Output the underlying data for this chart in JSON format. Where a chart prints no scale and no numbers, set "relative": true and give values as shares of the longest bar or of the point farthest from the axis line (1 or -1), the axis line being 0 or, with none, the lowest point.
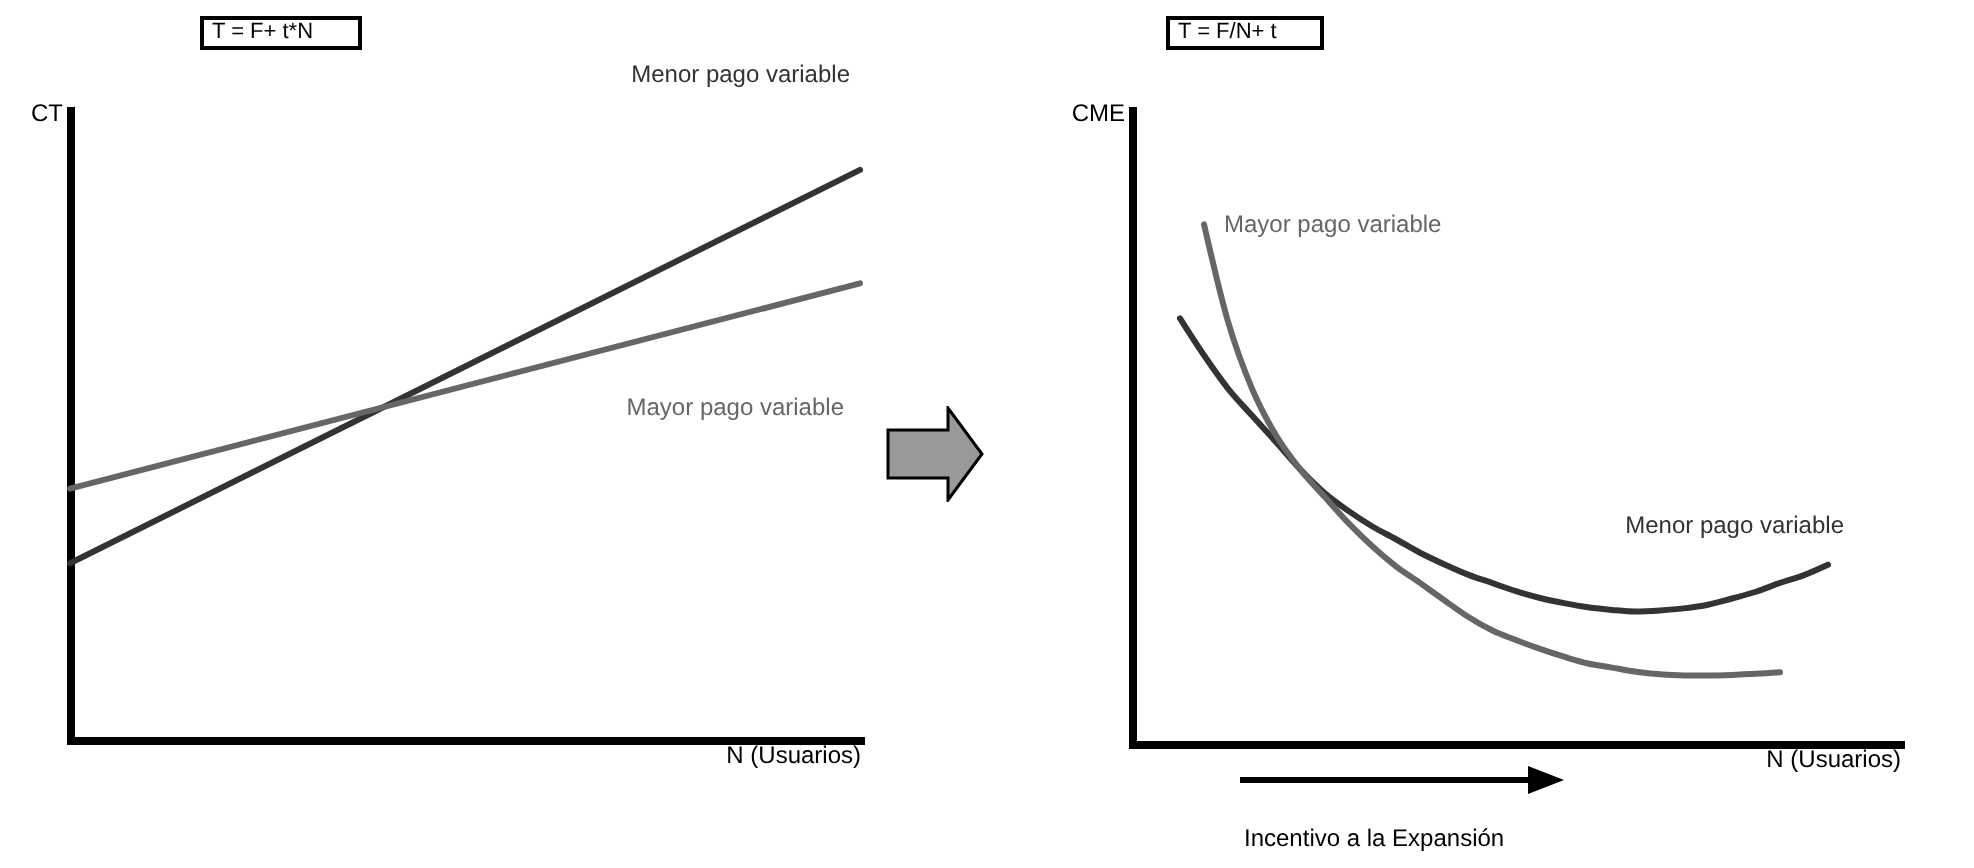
{
  "chart_data": [
    {
      "type": "line",
      "title": "T = F+ t*N",
      "xlabel": "N (Usuarios)",
      "ylabel": "CT",
      "relative": true,
      "tick_labels": false,
      "grid": false,
      "legend": false,
      "categories": [
        null,
        null
      ],
      "series": [
        {
          "name": "Menor pago variable",
          "color": "#333333",
          "values": [
            0.31,
            1
          ]
        },
        {
          "name": "Mayor pago variable",
          "color": "#666666",
          "values": [
            0.441,
            0.801
          ]
        }
      ]
    },
    {
      "type": "line",
      "title": "T = F/N+ t",
      "xlabel": "N (Usuarios)",
      "ylabel": "CME",
      "relative": true,
      "tick_labels": false,
      "grid": false,
      "legend": false,
      "annotations": [
        "Incentivo a la Expansión"
      ],
      "categories": [
        null,
        null,
        null,
        null,
        null,
        null,
        null,
        null,
        null,
        null,
        null,
        null,
        null,
        null,
        null,
        null,
        null,
        null,
        null,
        null,
        null,
        null,
        null,
        null,
        null,
        null,
        null,
        null,
        null,
        null,
        null,
        null,
        null
      ],
      "series": [
        {
          "name": "Menor pago variable",
          "color": "#333333",
          "values": [
            null,
            null,
            0.819,
            0.748,
            0.684,
            0.632,
            0.581,
            0.529,
            0.484,
            0.449,
            0.419,
            0.394,
            0.368,
            0.346,
            0.326,
            0.31,
            0.294,
            0.281,
            0.271,
            0.263,
            0.258,
            0.255,
            0.257,
            0.261,
            0.268,
            0.28,
            0.293,
            0.31,
            0.325,
            0.345,
            null,
            null,
            null
          ]
        },
        {
          "name": "Mayor pago variable",
          "color": "#666666",
          "values": [
            null,
            null,
            null,
            1,
            0.813,
            0.684,
            0.594,
            0.529,
            0.477,
            0.426,
            0.381,
            0.342,
            0.31,
            0.277,
            0.245,
            0.219,
            0.2,
            0.183,
            0.168,
            0.155,
            0.147,
            0.139,
            0.134,
            0.132,
            0.132,
            0.133,
            0.135,
            0.138,
            null,
            null,
            null,
            null,
            null
          ]
        }
      ]
    }
  ]
}
